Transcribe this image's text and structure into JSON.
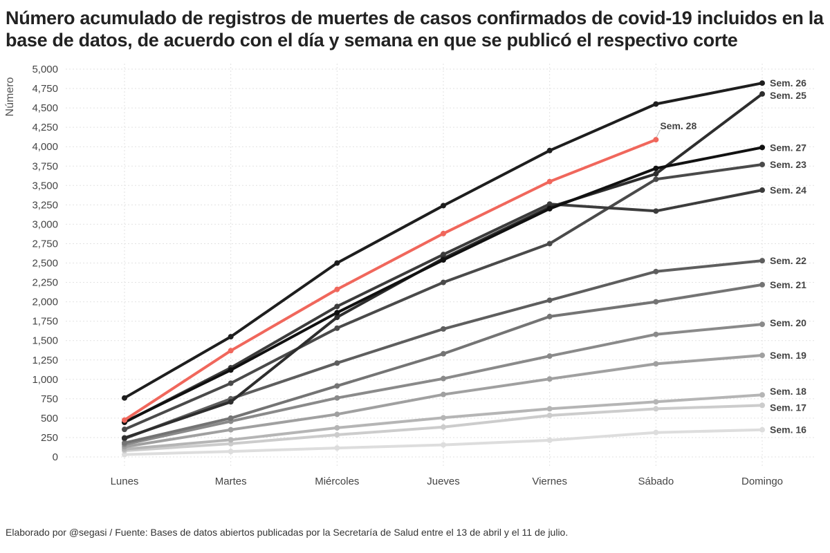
{
  "chart_data": {
    "type": "line",
    "title": "Número acumulado de registros de muertes de casos confirmados de covid-19 incluidos en la base de datos, de acuerdo con el día y semana en que se publicó el respectivo corte",
    "ylabel": "Número",
    "xlabel": "",
    "categories": [
      "Lunes",
      "Martes",
      "Miércoles",
      "Jueves",
      "Viernes",
      "Sábado",
      "Domingo"
    ],
    "ylim": [
      0,
      5000
    ],
    "yticks": [
      0,
      250,
      500,
      750,
      1000,
      1250,
      1500,
      1750,
      2000,
      2250,
      2500,
      2750,
      3000,
      3250,
      3500,
      3750,
      4000,
      4250,
      4500,
      4750,
      5000
    ],
    "grid": true,
    "series": [
      {
        "name": "Sem. 16",
        "color": "#dddddd",
        "values": [
          30,
          70,
          115,
          155,
          215,
          315,
          350
        ]
      },
      {
        "name": "Sem. 17",
        "color": "#cccccc",
        "values": [
          80,
          170,
          285,
          385,
          535,
          620,
          665
        ]
      },
      {
        "name": "Sem. 18",
        "color": "#b5b5b5",
        "values": [
          100,
          220,
          375,
          505,
          620,
          710,
          800
        ]
      },
      {
        "name": "Sem. 19",
        "color": "#a0a0a0",
        "values": [
          130,
          350,
          550,
          805,
          1005,
          1200,
          1310
        ]
      },
      {
        "name": "Sem. 20",
        "color": "#8a8a8a",
        "values": [
          160,
          460,
          760,
          1010,
          1300,
          1580,
          1710
        ]
      },
      {
        "name": "Sem. 21",
        "color": "#747474",
        "values": [
          180,
          500,
          915,
          1330,
          1810,
          2000,
          2220
        ]
      },
      {
        "name": "Sem. 22",
        "color": "#5e5e5e",
        "values": [
          235,
          750,
          1210,
          1650,
          2020,
          2390,
          2530
        ]
      },
      {
        "name": "Sem. 23",
        "color": "#4a4a4a",
        "values": [
          355,
          950,
          1660,
          2250,
          2750,
          3580,
          3770
        ]
      },
      {
        "name": "Sem. 24",
        "color": "#3c3c3c",
        "values": [
          445,
          1150,
          1940,
          2610,
          3260,
          3170,
          3440
        ]
      },
      {
        "name": "Sem. 25",
        "color": "#2e2e2e",
        "values": [
          245,
          710,
          1800,
          2560,
          3220,
          3650,
          4680
        ]
      },
      {
        "name": "Sem. 26",
        "color": "#1e1e1e",
        "values": [
          760,
          1550,
          2500,
          3240,
          3950,
          4550,
          4820
        ]
      },
      {
        "name": "Sem. 27",
        "color": "#111111",
        "values": [
          450,
          1120,
          1860,
          2540,
          3200,
          3720,
          3990
        ]
      },
      {
        "name": "Sem. 28",
        "color": "#f0675c",
        "values": [
          475,
          1370,
          2160,
          2880,
          3550,
          4090,
          null
        ]
      }
    ]
  },
  "caption": "Elaborado por @segasi / Fuente: Bases de datos abiertos publicadas por la Secretaría de Salud entre el 13 de abril y el 11 de julio."
}
